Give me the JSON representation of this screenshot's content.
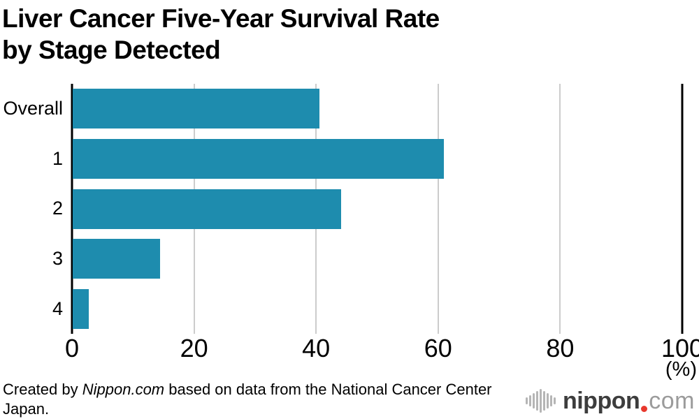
{
  "title": {
    "line1": "Liver Cancer Five-Year Survival Rate",
    "line2": "by Stage Detected"
  },
  "chart_data": {
    "type": "bar",
    "orientation": "horizontal",
    "title": "Liver Cancer Five-Year Survival Rate by Stage Detected",
    "categories": [
      "Overall",
      "1",
      "2",
      "3",
      "4"
    ],
    "values": [
      40.4,
      60.8,
      44.0,
      14.3,
      2.6
    ],
    "xlabel": "(%)",
    "ylabel": "",
    "xlim": [
      0,
      100
    ],
    "xticks": [
      0,
      20,
      40,
      60,
      80,
      100
    ],
    "grid": true,
    "legend": "none",
    "bar_color": "#1e8cae",
    "gridline_color": "#cccccc",
    "axis_color": "#000000"
  },
  "footer": {
    "credit_prefix": "Created by ",
    "credit_source": "Nippon.com",
    "credit_suffix": " based on data from the National Cancer Center Japan."
  },
  "logo": {
    "icon": "waveform-icon",
    "name": "nippon",
    "tld": "com",
    "name_color": "#3d3d3d",
    "tld_color": "#9b9b9b",
    "dot_color": "#e8382d",
    "wave_color": "#b5b5b5"
  }
}
